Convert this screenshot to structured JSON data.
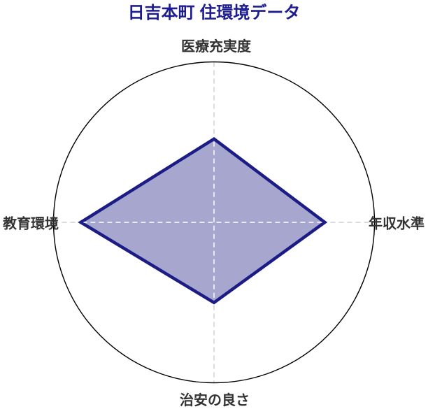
{
  "title": {
    "text": "日吉本町 住環境データ",
    "color": "#1d1d8f"
  },
  "axis_labels": {
    "top": "医療充実度",
    "right": "年収水準",
    "bottom": "治安の良さ",
    "left": "教育環境"
  },
  "chart_data": {
    "type": "radar",
    "title": "日吉本町 住環境データ",
    "categories": [
      "医療充実度",
      "年収水準",
      "治安の良さ",
      "教育環境"
    ],
    "category_positions": [
      "top",
      "right",
      "bottom",
      "left"
    ],
    "values": [
      52,
      69,
      50,
      83
    ],
    "value_range": [
      0,
      100
    ],
    "legend": "none",
    "grid": "outer circle + dashed cross spokes",
    "fill_color": "#a6a6ce",
    "line_color": "#1c1c87",
    "line_width": 4.5,
    "outline_circle_color": "#000000",
    "spoke_color": "#cfcfcf",
    "inner_cross_color": "#ffffff",
    "label_color": "#333333",
    "title_color": "#1d1d8f"
  }
}
